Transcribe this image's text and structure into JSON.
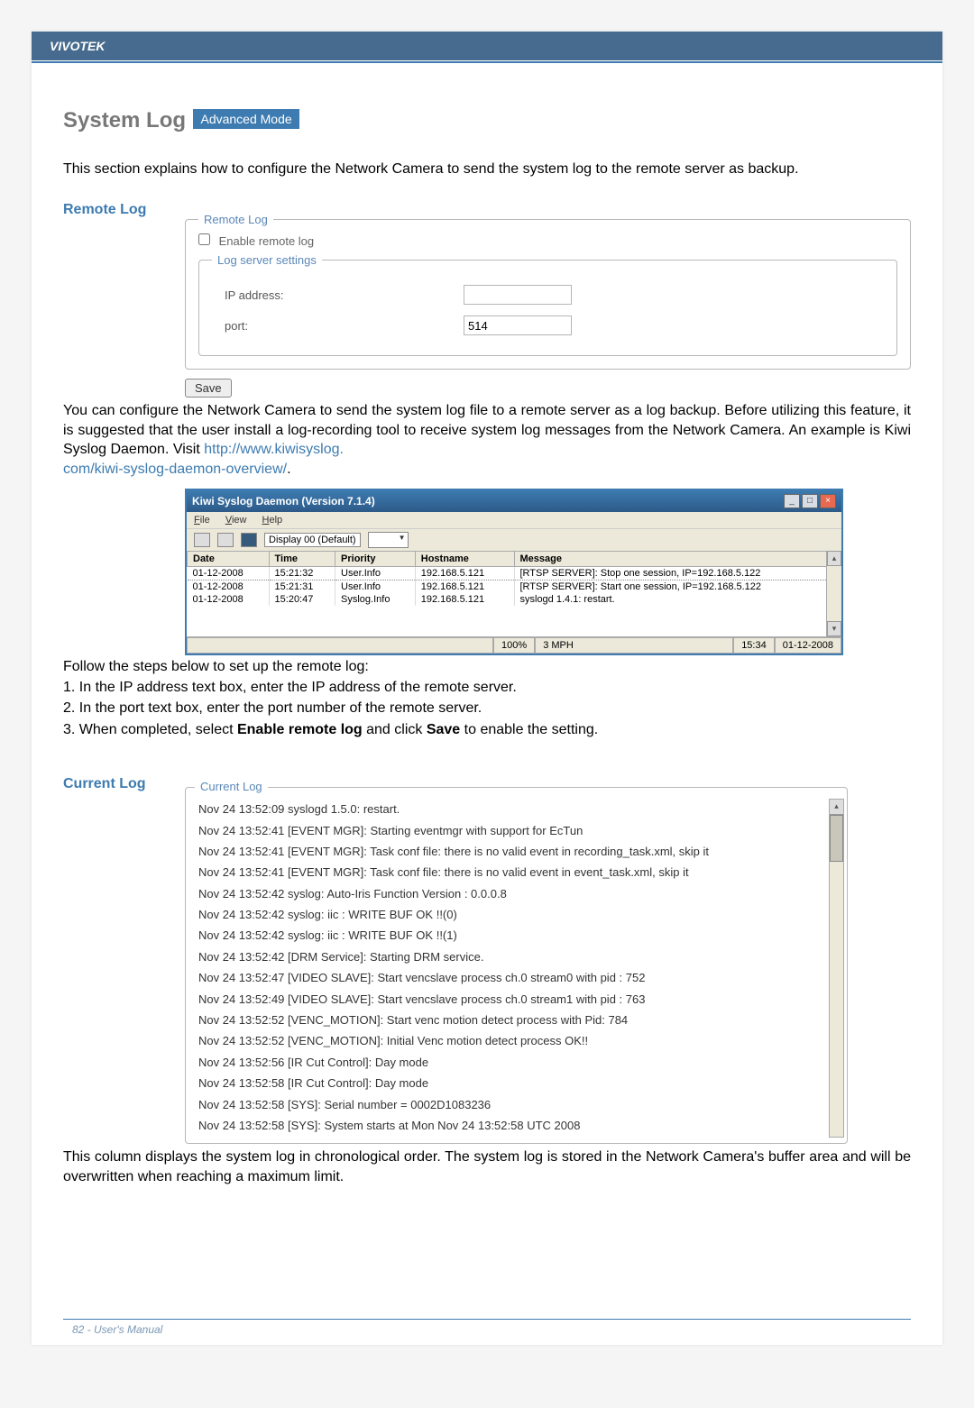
{
  "header": {
    "brand": "VIVOTEK"
  },
  "title": {
    "main": "System Log",
    "badge": "Advanced Mode"
  },
  "intro": "This section explains how to configure the Network Camera to send the system log to the remote server as backup.",
  "remote_log": {
    "heading": "Remote Log",
    "fieldset_label": "Remote Log",
    "checkbox_label": "Enable remote log",
    "inner_label": "Log server settings",
    "ip_label": "IP address:",
    "ip_value": "",
    "port_label": "port:",
    "port_value": "514",
    "save_label": "Save"
  },
  "config_para": {
    "text": "You can configure the Network Camera to send the system log file to a remote server as a log backup. Before utilizing this feature, it is suggested that the user install a log-recording tool to receive system log messages from the Network Camera. An example is Kiwi Syslog Daemon. Visit ",
    "link1": "http://www.kiwisyslog.",
    "link2": "com/kiwi-syslog-daemon-overview/",
    "dot": "."
  },
  "kiwi": {
    "title": "Kiwi Syslog Daemon (Version 7.1.4)",
    "menu": {
      "file": "File",
      "view": "View",
      "help": "Help"
    },
    "display_label": "Display 00 (Default)",
    "columns": [
      "Date",
      "Time",
      "Priority",
      "Hostname",
      "Message"
    ],
    "rows": [
      [
        "01-12-2008",
        "15:21:32",
        "User.Info",
        "192.168.5.121",
        "[RTSP SERVER]: Stop one session, IP=192.168.5.122"
      ],
      [
        "01-12-2008",
        "15:21:31",
        "User.Info",
        "192.168.5.121",
        "[RTSP SERVER]: Start one session, IP=192.168.5.122"
      ],
      [
        "01-12-2008",
        "15:20:47",
        "Syslog.Info",
        "192.168.5.121",
        "syslogd 1.4.1: restart."
      ]
    ],
    "status": {
      "pct": "100%",
      "mph": "3 MPH",
      "time": "15:34",
      "date": "01-12-2008"
    }
  },
  "steps": {
    "intro": "Follow the steps below to set up the remote log:",
    "s1": "1. In the IP address text box, enter the IP address of the remote server.",
    "s2": "2. In the port text box, enter the port number of the remote server.",
    "s3_a": "3. When completed, select ",
    "s3_b": "Enable remote log",
    "s3_c": " and click ",
    "s3_d": "Save",
    "s3_e": " to enable the setting."
  },
  "current_log": {
    "heading": "Current Log",
    "legend": "Current Log",
    "lines": [
      "Nov 24 13:52:09 syslogd 1.5.0: restart.",
      "Nov 24 13:52:41 [EVENT MGR]: Starting eventmgr with support for EcTun",
      "Nov 24 13:52:41 [EVENT MGR]: Task conf file: there is no valid event in recording_task.xml, skip it",
      "Nov 24 13:52:41 [EVENT MGR]: Task conf file: there is no valid event in event_task.xml, skip it",
      "Nov 24 13:52:42 syslog: Auto-Iris Function Version : 0.0.0.8",
      "Nov 24 13:52:42 syslog: iic : WRITE BUF OK !!(0)",
      "Nov 24 13:52:42 syslog: iic : WRITE BUF OK !!(1)",
      "Nov 24 13:52:42 [DRM Service]: Starting DRM service.",
      "Nov 24 13:52:47 [VIDEO SLAVE]: Start vencslave process ch.0 stream0 with pid : 752",
      "Nov 24 13:52:49 [VIDEO SLAVE]: Start vencslave process ch.0 stream1 with pid : 763",
      "Nov 24 13:52:52 [VENC_MOTION]: Start venc motion detect process with Pid: 784",
      "Nov 24 13:52:52 [VENC_MOTION]: Initial Venc motion detect process OK!!",
      "Nov 24 13:52:56 [IR Cut Control]: Day mode",
      "Nov 24 13:52:58 [IR Cut Control]: Day mode",
      "Nov 24 13:52:58 [SYS]: Serial number = 0002D1083236",
      "Nov 24 13:52:58 [SYS]: System starts at Mon Nov 24 13:52:58 UTC 2008"
    ]
  },
  "closing": "This column displays the system log in chronological order. The system log is stored in the Network Camera's buffer area and will be overwritten when reaching a maximum limit.",
  "footer": {
    "page": "82 - ",
    "label": "User's Manual"
  }
}
